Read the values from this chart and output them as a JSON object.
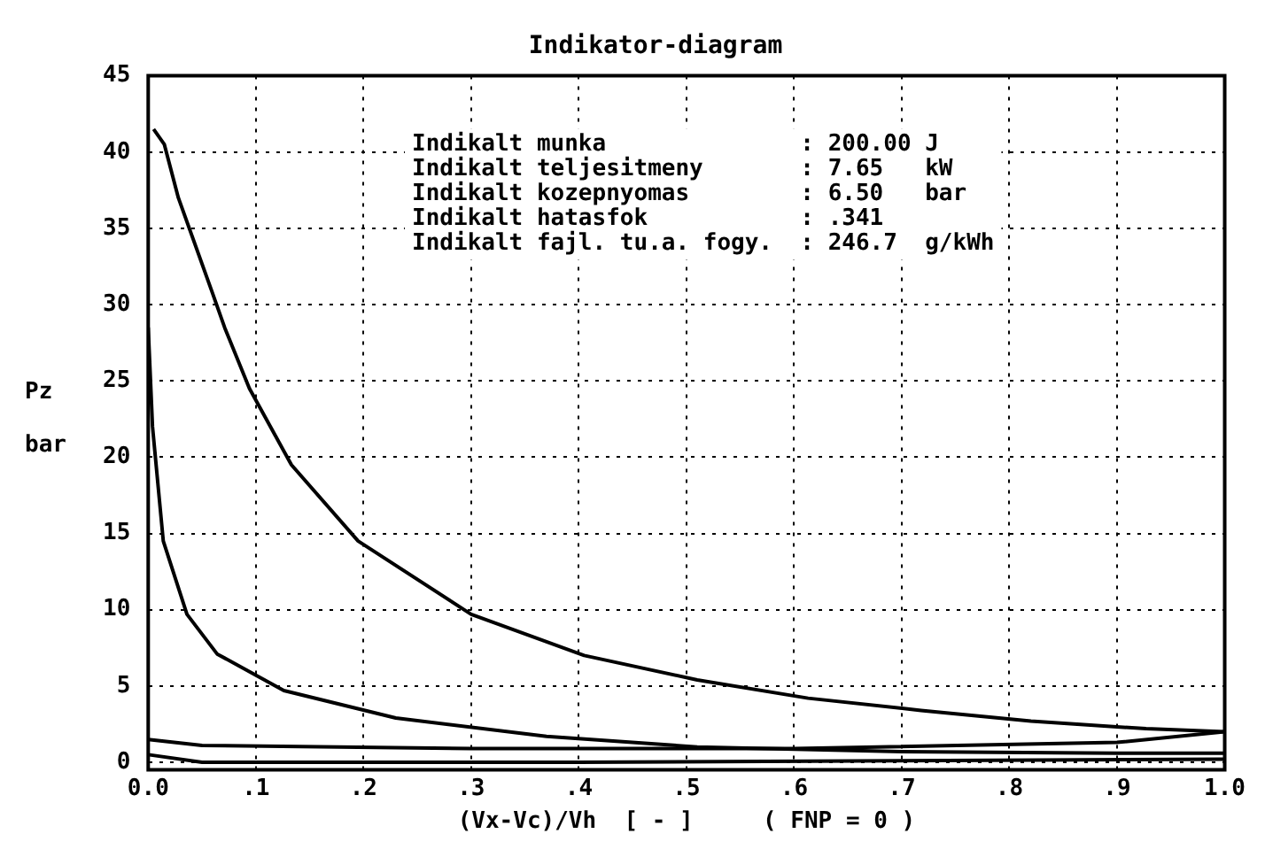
{
  "chart_data": {
    "type": "line",
    "title": "Indikator-diagram",
    "xlabel": "(Vx-Vc)/Vh  [ - ]     ( FNP = 0 )",
    "ylabel": "Pz\nbar",
    "series": [
      {
        "color": "#000000",
        "x": [
          0.005,
          0.015,
          0.028,
          0.059,
          0.071,
          0.094,
          0.133,
          0.195,
          0.3,
          0.405,
          0.51,
          0.613,
          0.718,
          0.82,
          0.927,
          1.0
        ],
        "values": [
          41.5,
          40.5,
          37,
          30.9,
          28.5,
          24.5,
          19.5,
          14.5,
          9.7,
          7.0,
          5.4,
          4.2,
          3.4,
          2.7,
          2.2,
          2.0
        ]
      },
      {
        "color": "#000000",
        "x": [
          0.0,
          0.004,
          0.014,
          0.036,
          0.064,
          0.126,
          0.23,
          0.37,
          0.51,
          0.7,
          0.9,
          1.0
        ],
        "values": [
          28.5,
          22,
          14.5,
          9.7,
          7.1,
          4.7,
          2.9,
          1.7,
          1.0,
          0.7,
          0.6,
          0.6
        ]
      },
      {
        "color": "#000000",
        "x": [
          1.0,
          0.9,
          0.6,
          0.3,
          0.05,
          0.0
        ],
        "values": [
          2.0,
          1.3,
          0.9,
          0.9,
          1.1,
          1.5
        ]
      },
      {
        "color": "#000000",
        "x": [
          0.0,
          0.05,
          0.4,
          1.0
        ],
        "values": [
          0.5,
          0.0,
          0.0,
          0.2
        ]
      }
    ],
    "xlim": [
      0,
      1
    ],
    "xticks": [
      {
        "value": 0,
        "label": "0.0"
      },
      {
        "value": 0.1,
        "label": ".1"
      },
      {
        "value": 0.2,
        "label": ".2"
      },
      {
        "value": 0.3,
        "label": ".3"
      },
      {
        "value": 0.4,
        "label": ".4"
      },
      {
        "value": 0.5,
        "label": ".5"
      },
      {
        "value": 0.6,
        "label": ".6"
      },
      {
        "value": 0.7,
        "label": ".7"
      },
      {
        "value": 0.8,
        "label": ".8"
      },
      {
        "value": 0.9,
        "label": ".9"
      },
      {
        "value": 1,
        "label": "1.0"
      }
    ],
    "ylim": [
      -0.5,
      45
    ],
    "yticks": [
      0,
      5,
      10,
      15,
      20,
      25,
      30,
      35,
      40,
      45
    ],
    "grid": true,
    "legend": false,
    "marker": "none",
    "line_style": "solid",
    "annotations": [
      "Indikalt munka              : 200.00 J",
      "Indikalt teljesitmeny       : 7.65   kW",
      "Indikalt kozepnyomas        : 6.50   bar",
      "Indikalt hatasfok           : .341",
      "Indikalt fajl. tu.a. fogy.  : 246.7  g/kWh"
    ]
  }
}
